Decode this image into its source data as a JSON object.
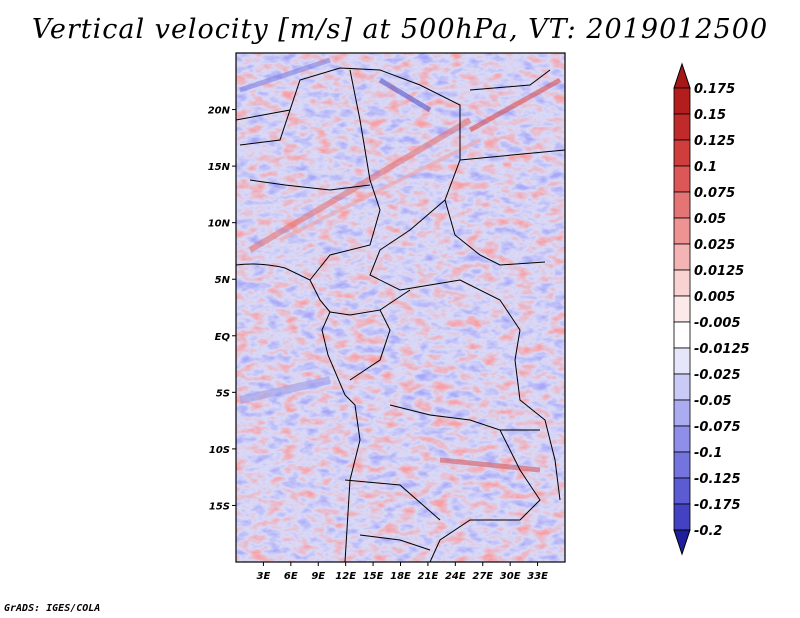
{
  "title": "Vertical velocity [m/s] at 500hPa, VT: 2019012500",
  "credit": "GrADS: IGES/COLA",
  "map": {
    "lon_range": [
      0,
      36
    ],
    "lat_range": [
      -20,
      25
    ],
    "lat_ticks": [
      {
        "value": 20,
        "label": "20N"
      },
      {
        "value": 15,
        "label": "15N"
      },
      {
        "value": 10,
        "label": "10N"
      },
      {
        "value": 5,
        "label": "5N"
      },
      {
        "value": 0,
        "label": "EQ"
      },
      {
        "value": -5,
        "label": "5S"
      },
      {
        "value": -10,
        "label": "10S"
      },
      {
        "value": -15,
        "label": "15S"
      }
    ],
    "lon_ticks": [
      {
        "value": 3,
        "label": "3E"
      },
      {
        "value": 6,
        "label": "6E"
      },
      {
        "value": 9,
        "label": "9E"
      },
      {
        "value": 12,
        "label": "12E"
      },
      {
        "value": 15,
        "label": "15E"
      },
      {
        "value": 18,
        "label": "18E"
      },
      {
        "value": 21,
        "label": "21E"
      },
      {
        "value": 24,
        "label": "24E"
      },
      {
        "value": 27,
        "label": "27E"
      },
      {
        "value": 30,
        "label": "30E"
      },
      {
        "value": 33,
        "label": "33E"
      }
    ]
  },
  "colorbar": {
    "levels": [
      {
        "label": "0.175",
        "color": "#b31d1d"
      },
      {
        "label": "0.15",
        "color": "#c12a2a"
      },
      {
        "label": "0.125",
        "color": "#d03d3d"
      },
      {
        "label": "0.1",
        "color": "#dc5757"
      },
      {
        "label": "0.075",
        "color": "#e57474"
      },
      {
        "label": "0.05",
        "color": "#ee9393"
      },
      {
        "label": "0.025",
        "color": "#f4b4b4"
      },
      {
        "label": "0.0125",
        "color": "#f9d2d2"
      },
      {
        "label": "0.005",
        "color": "#fce9e9"
      },
      {
        "label": "-0.005",
        "color": "#ffffff"
      },
      {
        "label": "-0.0125",
        "color": "#e6e6fb"
      },
      {
        "label": "-0.025",
        "color": "#cacaf6"
      },
      {
        "label": "-0.05",
        "color": "#ababf0"
      },
      {
        "label": "-0.075",
        "color": "#8f8fe9"
      },
      {
        "label": "-0.1",
        "color": "#7474de"
      },
      {
        "label": "-0.125",
        "color": "#5b5bd2"
      },
      {
        "label": "-0.175",
        "color": "#4242c2"
      },
      {
        "label": "-0.2",
        "color": "#2b2bb0"
      }
    ],
    "top_color": "#a61818",
    "bottom_color": "#1f1f9e"
  }
}
